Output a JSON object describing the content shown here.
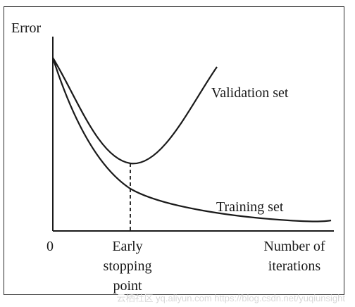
{
  "diagram": {
    "y_axis_label": "Error",
    "origin_label": "0",
    "x_axis_label_line1": "Number of",
    "x_axis_label_line2": "iterations",
    "early_stop_line1": "Early",
    "early_stop_line2": "stopping",
    "early_stop_line3": "point",
    "validation_label": "Validation set",
    "training_label": "Training set"
  },
  "watermark": "云栖社区 yq.aliyun.com  https://blog.csdn.net/yuqiunsight",
  "colors": {
    "ink": "#1a1a1a",
    "frame": "#2a2a2a",
    "watermark": "#d8d8d8"
  }
}
